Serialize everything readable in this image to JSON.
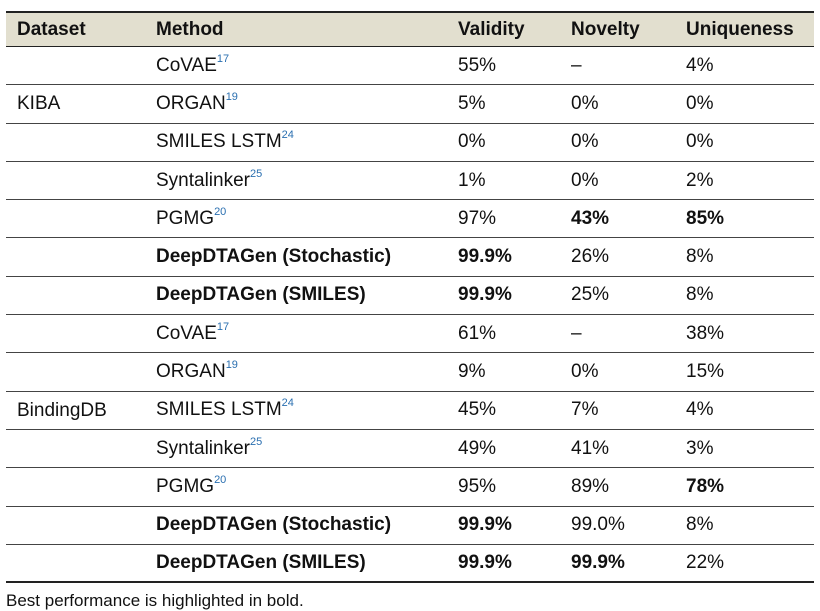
{
  "headers": {
    "dataset": "Dataset",
    "method": "Method",
    "validity": "Validity",
    "novelty": "Novelty",
    "uniqueness": "Uniqueness"
  },
  "groups": {
    "kiba": "KIBA",
    "bindingdb": "BindingDB"
  },
  "rows": [
    {
      "method": "CoVAE",
      "ref": "17",
      "validity": "55%",
      "novelty": "–",
      "uniqueness": "4%",
      "bold": []
    },
    {
      "method": "ORGAN",
      "ref": "19",
      "validity": "5%",
      "novelty": "0%",
      "uniqueness": "0%",
      "bold": []
    },
    {
      "method": "SMILES LSTM",
      "ref": "24",
      "validity": "0%",
      "novelty": "0%",
      "uniqueness": "0%",
      "bold": []
    },
    {
      "method": "Syntalinker",
      "ref": "25",
      "validity": "1%",
      "novelty": "0%",
      "uniqueness": "2%",
      "bold": []
    },
    {
      "method": "PGMG",
      "ref": "20",
      "validity": "97%",
      "novelty": "43%",
      "uniqueness": "85%",
      "bold": [
        "novelty",
        "uniqueness"
      ]
    },
    {
      "method": "DeepDTAGen (Stochastic)",
      "ref": "",
      "validity": "99.9%",
      "novelty": "26%",
      "uniqueness": "8%",
      "bold": [
        "method",
        "validity"
      ]
    },
    {
      "method": "DeepDTAGen (SMILES)",
      "ref": "",
      "validity": "99.9%",
      "novelty": "25%",
      "uniqueness": "8%",
      "bold": [
        "method",
        "validity"
      ]
    },
    {
      "method": "CoVAE",
      "ref": "17",
      "validity": "61%",
      "novelty": "–",
      "uniqueness": "38%",
      "bold": []
    },
    {
      "method": "ORGAN",
      "ref": "19",
      "validity": "9%",
      "novelty": "0%",
      "uniqueness": "15%",
      "bold": []
    },
    {
      "method": "SMILES LSTM",
      "ref": "24",
      "validity": "45%",
      "novelty": "7%",
      "uniqueness": "4%",
      "bold": []
    },
    {
      "method": "Syntalinker",
      "ref": "25",
      "validity": "49%",
      "novelty": "41%",
      "uniqueness": "3%",
      "bold": []
    },
    {
      "method": "PGMG",
      "ref": "20",
      "validity": "95%",
      "novelty": "89%",
      "uniqueness": "78%",
      "bold": [
        "uniqueness"
      ]
    },
    {
      "method": "DeepDTAGen (Stochastic)",
      "ref": "",
      "validity": "99.9%",
      "novelty": "99.0%",
      "uniqueness": "8%",
      "bold": [
        "method",
        "validity"
      ]
    },
    {
      "method": "DeepDTAGen (SMILES)",
      "ref": "",
      "validity": "99.9%",
      "novelty": "99.9%",
      "uniqueness": "22%",
      "bold": [
        "method",
        "validity",
        "novelty"
      ]
    }
  ],
  "footnote": "Best performance is highlighted in bold."
}
